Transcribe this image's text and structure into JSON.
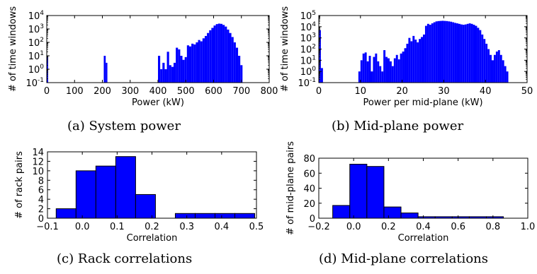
{
  "colors": {
    "bar_fill": "#0000ff",
    "bar_stroke": "#000000",
    "axis": "#000000"
  },
  "captions": {
    "a": "(a) System power",
    "b": "(b) Mid-plane power",
    "c": "(c) Rack correlations",
    "d": "(d) Mid-plane correlations"
  },
  "chart_data": [
    {
      "id": "a",
      "type": "bar",
      "title": "",
      "xlabel": "Power (kW)",
      "ylabel": "# of time windows",
      "xlim": [
        0,
        800
      ],
      "ylim": [
        0.1,
        10000
      ],
      "yscale": "log",
      "xticks": [
        "0",
        "100",
        "200",
        "300",
        "400",
        "500",
        "600",
        "700",
        "800"
      ],
      "yticks": [
        {
          "base": "10",
          "exp": "-1"
        },
        {
          "base": "10",
          "exp": "0"
        },
        {
          "base": "10",
          "exp": "1"
        },
        {
          "base": "10",
          "exp": "2"
        },
        {
          "base": "10",
          "exp": "3"
        },
        {
          "base": "10",
          "exp": "4"
        }
      ],
      "grid": false,
      "bins": [
        [
          0,
          5,
          10
        ],
        [
          205,
          212,
          10
        ],
        [
          212,
          218,
          3
        ],
        [
          400,
          408,
          10
        ],
        [
          408,
          416,
          1
        ],
        [
          416,
          424,
          3
        ],
        [
          424,
          432,
          1
        ],
        [
          432,
          440,
          20
        ],
        [
          440,
          448,
          2
        ],
        [
          448,
          456,
          1.5
        ],
        [
          456,
          464,
          3
        ],
        [
          464,
          472,
          40
        ],
        [
          472,
          480,
          30
        ],
        [
          480,
          488,
          10
        ],
        [
          488,
          496,
          5
        ],
        [
          496,
          504,
          8
        ],
        [
          504,
          512,
          60
        ],
        [
          512,
          520,
          50
        ],
        [
          520,
          528,
          80
        ],
        [
          528,
          536,
          70
        ],
        [
          536,
          544,
          100
        ],
        [
          544,
          552,
          150
        ],
        [
          552,
          560,
          120
        ],
        [
          560,
          568,
          200
        ],
        [
          568,
          576,
          300
        ],
        [
          576,
          584,
          500
        ],
        [
          584,
          592,
          800
        ],
        [
          592,
          600,
          1200
        ],
        [
          600,
          608,
          1800
        ],
        [
          608,
          616,
          2300
        ],
        [
          616,
          624,
          2500
        ],
        [
          624,
          632,
          2400
        ],
        [
          632,
          640,
          2000
        ],
        [
          640,
          648,
          1500
        ],
        [
          648,
          656,
          900
        ],
        [
          656,
          664,
          500
        ],
        [
          664,
          672,
          250
        ],
        [
          672,
          680,
          100
        ],
        [
          680,
          688,
          40
        ],
        [
          688,
          696,
          10
        ],
        [
          696,
          704,
          2
        ]
      ]
    },
    {
      "id": "b",
      "type": "bar",
      "title": "",
      "xlabel": "Power per mid-plane (kW)",
      "ylabel": "# of time windows",
      "xlim": [
        0,
        50
      ],
      "ylim": [
        0.1,
        100000
      ],
      "yscale": "log",
      "xticks": [
        "0",
        "10",
        "20",
        "30",
        "40",
        "50"
      ],
      "yticks": [
        {
          "base": "10",
          "exp": "-1"
        },
        {
          "base": "10",
          "exp": "0"
        },
        {
          "base": "10",
          "exp": "1"
        },
        {
          "base": "10",
          "exp": "2"
        },
        {
          "base": "10",
          "exp": "3"
        },
        {
          "base": "10",
          "exp": "4"
        },
        {
          "base": "10",
          "exp": "5"
        }
      ],
      "grid": false,
      "bins": [
        [
          0,
          0.5,
          5000
        ],
        [
          0.5,
          1.0,
          2
        ],
        [
          9.5,
          10.0,
          1
        ],
        [
          10.0,
          10.5,
          10
        ],
        [
          10.5,
          11.0,
          40
        ],
        [
          11.0,
          11.5,
          50
        ],
        [
          11.5,
          12.0,
          8
        ],
        [
          12.0,
          12.5,
          25
        ],
        [
          12.5,
          13.0,
          1
        ],
        [
          13.0,
          13.5,
          20
        ],
        [
          13.5,
          14.0,
          40
        ],
        [
          14.0,
          14.5,
          8
        ],
        [
          14.5,
          15.0,
          3
        ],
        [
          15.0,
          15.5,
          1
        ],
        [
          15.5,
          16.0,
          80
        ],
        [
          16.0,
          16.5,
          20
        ],
        [
          16.5,
          17.0,
          15
        ],
        [
          17.0,
          17.5,
          8
        ],
        [
          17.5,
          18.0,
          3
        ],
        [
          18.0,
          18.5,
          15
        ],
        [
          18.5,
          19.0,
          30
        ],
        [
          19.0,
          19.5,
          12
        ],
        [
          19.5,
          20.0,
          40
        ],
        [
          20.0,
          20.5,
          60
        ],
        [
          20.5,
          21.0,
          120
        ],
        [
          21.0,
          21.5,
          300
        ],
        [
          21.5,
          22.0,
          1000
        ],
        [
          22.0,
          22.5,
          500
        ],
        [
          22.5,
          23.0,
          1500
        ],
        [
          23.0,
          23.5,
          700
        ],
        [
          23.5,
          24.0,
          400
        ],
        [
          24.0,
          24.5,
          800
        ],
        [
          24.5,
          25.0,
          1200
        ],
        [
          25.0,
          25.5,
          2000
        ],
        [
          25.5,
          26.0,
          12000
        ],
        [
          26.0,
          26.5,
          18000
        ],
        [
          26.5,
          27.0,
          15000
        ],
        [
          27.0,
          27.5,
          20000
        ],
        [
          27.5,
          28.0,
          25000
        ],
        [
          28.0,
          28.5,
          30000
        ],
        [
          28.5,
          29.0,
          32000
        ],
        [
          29.0,
          29.5,
          33000
        ],
        [
          29.5,
          30.0,
          34000
        ],
        [
          30.0,
          30.5,
          33000
        ],
        [
          30.5,
          31.0,
          32000
        ],
        [
          31.0,
          31.5,
          30000
        ],
        [
          31.5,
          32.0,
          28000
        ],
        [
          32.0,
          32.5,
          25000
        ],
        [
          32.5,
          33.0,
          22000
        ],
        [
          33.0,
          33.5,
          20000
        ],
        [
          33.5,
          34.0,
          18000
        ],
        [
          34.0,
          34.5,
          16000
        ],
        [
          34.5,
          35.0,
          15000
        ],
        [
          35.0,
          35.5,
          16000
        ],
        [
          35.5,
          36.0,
          18000
        ],
        [
          36.0,
          36.5,
          20000
        ],
        [
          36.5,
          37.0,
          18000
        ],
        [
          37.0,
          37.5,
          15000
        ],
        [
          37.5,
          38.0,
          12000
        ],
        [
          38.0,
          38.5,
          8000
        ],
        [
          38.5,
          39.0,
          5000
        ],
        [
          39.0,
          39.5,
          2000
        ],
        [
          39.5,
          40.0,
          800
        ],
        [
          40.0,
          40.5,
          300
        ],
        [
          40.5,
          41.0,
          100
        ],
        [
          41.0,
          41.5,
          30
        ],
        [
          41.5,
          42.0,
          10
        ],
        [
          42.0,
          42.5,
          30
        ],
        [
          42.5,
          43.0,
          60
        ],
        [
          43.0,
          43.5,
          80
        ],
        [
          43.5,
          44.0,
          30
        ],
        [
          44.0,
          44.5,
          10
        ],
        [
          44.5,
          45.0,
          3
        ],
        [
          45.0,
          45.5,
          1
        ]
      ]
    },
    {
      "id": "c",
      "type": "bar",
      "title": "",
      "xlabel": "Correlation",
      "ylabel": "# of rack pairs",
      "xlim": [
        -0.1,
        0.5
      ],
      "ylim": [
        0,
        14
      ],
      "yscale": "linear",
      "xticks": [
        "−0.1",
        "0.0",
        "0.1",
        "0.2",
        "0.3",
        "0.4",
        "0.5"
      ],
      "yticks": [
        "0",
        "2",
        "4",
        "6",
        "8",
        "10",
        "12",
        "14"
      ],
      "grid": false,
      "bins": [
        [
          -0.075,
          -0.018,
          2
        ],
        [
          -0.018,
          0.039,
          10
        ],
        [
          0.039,
          0.096,
          11
        ],
        [
          0.096,
          0.153,
          13
        ],
        [
          0.153,
          0.21,
          5
        ],
        [
          0.21,
          0.267,
          0
        ],
        [
          0.267,
          0.324,
          1
        ],
        [
          0.324,
          0.381,
          1
        ],
        [
          0.381,
          0.438,
          1
        ],
        [
          0.438,
          0.495,
          1
        ]
      ]
    },
    {
      "id": "d",
      "type": "bar",
      "title": "",
      "xlabel": "Correlation",
      "ylabel": "# of mid-plane pairs",
      "xlim": [
        -0.2,
        1.0
      ],
      "ylim": [
        0,
        80
      ],
      "yscale": "linear",
      "xticks": [
        "−0.2",
        "0.0",
        "0.2",
        "0.4",
        "0.6",
        "0.8",
        "1.0"
      ],
      "yticks": [
        "0",
        "20",
        "40",
        "60",
        "80"
      ],
      "grid": false,
      "bins": [
        [
          -0.12,
          -0.022,
          17
        ],
        [
          -0.022,
          0.076,
          72
        ],
        [
          0.076,
          0.174,
          69
        ],
        [
          0.174,
          0.272,
          15
        ],
        [
          0.272,
          0.37,
          7
        ],
        [
          0.37,
          0.468,
          2
        ],
        [
          0.468,
          0.566,
          2
        ],
        [
          0.566,
          0.664,
          2
        ],
        [
          0.664,
          0.762,
          2
        ],
        [
          0.762,
          0.86,
          2
        ]
      ]
    }
  ]
}
